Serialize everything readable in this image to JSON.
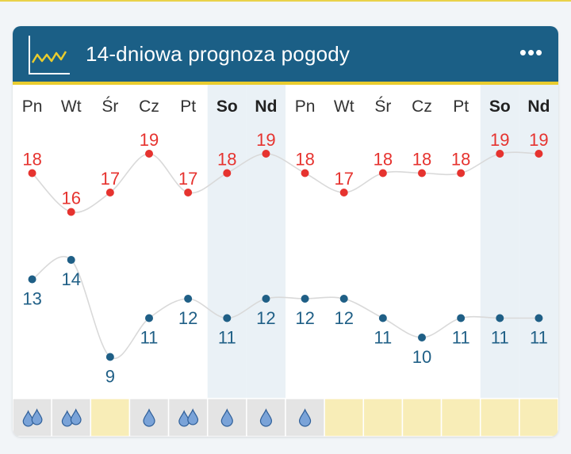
{
  "widget": {
    "title": "14-dniowa prognoza pogody",
    "menu_label": "•••",
    "icon": "line-chart-icon"
  },
  "colors": {
    "header_bg": "#1b5f86",
    "header_accent": "#e9cc2e",
    "high_temp": "#e6332f",
    "low_temp": "#1f5f86",
    "weekend_bg": "#eaf1f6",
    "rain_icon": "#7aa3d8",
    "dry_cell_bg": "#f8edb7",
    "wet_cell_bg": "#e4e4e4"
  },
  "chart_data": {
    "type": "line",
    "categories": [
      "Pn",
      "Wt",
      "Śr",
      "Cz",
      "Pt",
      "So",
      "Nd",
      "Pn",
      "Wt",
      "Śr",
      "Cz",
      "Pt",
      "So",
      "Nd"
    ],
    "weekend": [
      false,
      false,
      false,
      false,
      false,
      true,
      true,
      false,
      false,
      false,
      false,
      false,
      true,
      true
    ],
    "series": [
      {
        "values": [
          18,
          16,
          17,
          19,
          17,
          18,
          19,
          18,
          17,
          18,
          18,
          18,
          19,
          19
        ]
      },
      {
        "values": [
          13,
          14,
          9,
          11,
          12,
          11,
          12,
          12,
          12,
          11,
          10,
          11,
          11,
          11
        ]
      }
    ],
    "precipitation": [
      2,
      2,
      0,
      1,
      2,
      1,
      1,
      1,
      0,
      0,
      0,
      0,
      0,
      0
    ],
    "precipitation_icon": "raindrop-icon"
  }
}
